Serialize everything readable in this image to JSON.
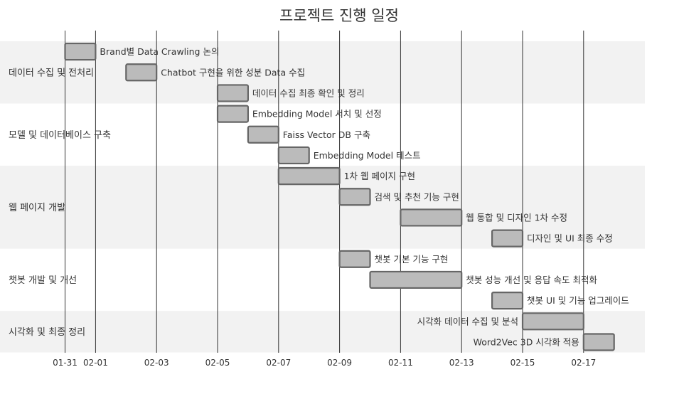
{
  "chart_data": {
    "type": "gantt",
    "title": "프로젝트 진행 일정",
    "x_ticks": [
      "01-31",
      "02-01",
      "02-03",
      "02-05",
      "02-07",
      "02-09",
      "02-11",
      "02-13",
      "02-15",
      "02-17"
    ],
    "x_tick_dates": [
      "2024-01-31",
      "2024-02-01",
      "2024-02-03",
      "2024-02-05",
      "2024-02-07",
      "2024-02-09",
      "2024-02-11",
      "2024-02-13",
      "2024-02-15",
      "2024-02-17"
    ],
    "xlim": [
      "2024-01-30",
      "2024-02-20"
    ],
    "categories": [
      {
        "name": "데이터 수집 및 전처리",
        "tasks": [
          0,
          1,
          2
        ]
      },
      {
        "name": "모델 및 데이터베이스 구축",
        "tasks": [
          3,
          4,
          5
        ]
      },
      {
        "name": "웹 페이지 개발",
        "tasks": [
          6,
          7,
          8,
          9
        ]
      },
      {
        "name": "챗봇 개발 및 개선",
        "tasks": [
          10,
          11,
          12
        ]
      },
      {
        "name": "시각화 및 최종 정리",
        "tasks": [
          13,
          14
        ]
      }
    ],
    "tasks": [
      {
        "label": "Brand별 Data Crawling 논의",
        "start": "2024-01-31",
        "end": "2024-02-01"
      },
      {
        "label": "Chatbot 구현을 위한 성분 Data 수집",
        "start": "2024-02-02",
        "end": "2024-02-03"
      },
      {
        "label": "데이터 수집 최종 확인 및 정리",
        "start": "2024-02-05",
        "end": "2024-02-06"
      },
      {
        "label": "Embedding Model 서치 및 선정",
        "start": "2024-02-05",
        "end": "2024-02-06"
      },
      {
        "label": "Faiss Vector DB 구축",
        "start": "2024-02-06",
        "end": "2024-02-07"
      },
      {
        "label": "Embedding Model 테스트",
        "start": "2024-02-07",
        "end": "2024-02-08"
      },
      {
        "label": "1차 웹 페이지 구현",
        "start": "2024-02-07",
        "end": "2024-02-09"
      },
      {
        "label": "검색 및 추천 기능 구현",
        "start": "2024-02-09",
        "end": "2024-02-10"
      },
      {
        "label": "웹 통합 및 디자인 1차 수정",
        "start": "2024-02-11",
        "end": "2024-02-13"
      },
      {
        "label": "디자인 및 UI 최종 수정",
        "start": "2024-02-14",
        "end": "2024-02-15"
      },
      {
        "label": "챗봇 기본 기능 구현",
        "start": "2024-02-09",
        "end": "2024-02-10"
      },
      {
        "label": "챗봇 성능 개선 및 응답 속도 최적화",
        "start": "2024-02-10",
        "end": "2024-02-13"
      },
      {
        "label": "챗봇 UI 및 기능 업그레이드",
        "start": "2024-02-14",
        "end": "2024-02-15"
      },
      {
        "label": "시각화 데이터 수집 및 분석",
        "start": "2024-02-15",
        "end": "2024-02-17",
        "label_side": "left"
      },
      {
        "label": "Word2Vec 3D 시각화 적용",
        "start": "2024-02-17",
        "end": "2024-02-18",
        "label_side": "left"
      }
    ],
    "colors": {
      "bar_fill": "#bbbbbb",
      "bar_stroke": "#666666",
      "band": "#f2f2f2",
      "grid": "#333333",
      "text": "#333333"
    },
    "grid": true
  }
}
